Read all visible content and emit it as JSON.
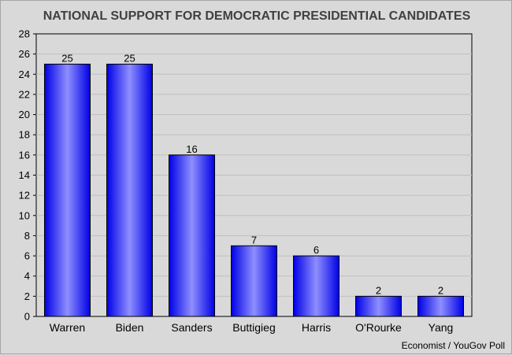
{
  "chart_data": {
    "type": "bar",
    "title": "NATIONAL SUPPORT FOR DEMOCRATIC PRESIDENTIAL CANDIDATES",
    "categories": [
      "Warren",
      "Biden",
      "Sanders",
      "Buttigieg",
      "Harris",
      "O'Rourke",
      "Yang"
    ],
    "values": [
      25,
      25,
      16,
      7,
      6,
      2,
      2
    ],
    "xlabel": "",
    "ylabel": "",
    "ylim": [
      0,
      28
    ],
    "yticks": [
      0,
      2,
      4,
      6,
      8,
      10,
      12,
      14,
      16,
      18,
      20,
      22,
      24,
      26,
      28
    ],
    "grid": true,
    "legend": "none",
    "data_labels": true,
    "bar_color": "#0000e6",
    "bar_highlight_color": "#8f8fff",
    "source": "Economist / YouGov Poll"
  }
}
